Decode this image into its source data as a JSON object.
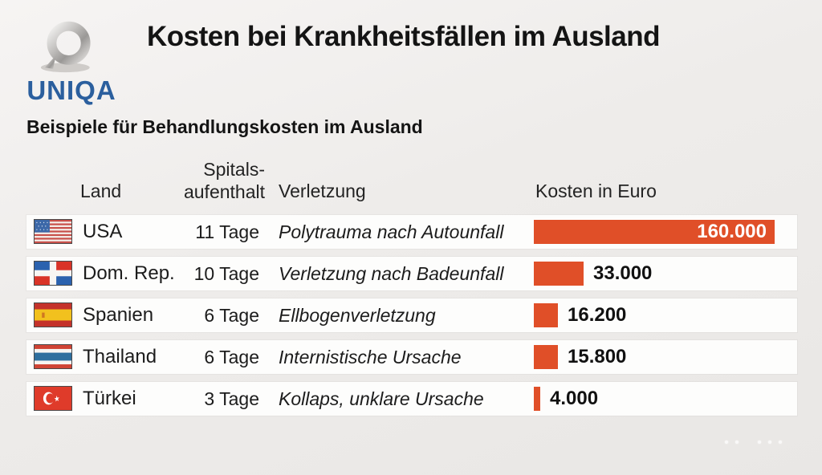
{
  "header": {
    "brand": "UNIQA",
    "title": "Kosten bei Krankheitsfällen im Ausland"
  },
  "subtitle": "Beispiele für Behandlungskosten im Ausland",
  "columns": {
    "country": "Land",
    "stay_line1": "Spitals-",
    "stay_line2": "aufenthalt",
    "injury": "Verletzung",
    "cost": "Kosten in Euro"
  },
  "rows": [
    {
      "country": "USA",
      "flag": "usa",
      "stay": "11 Tage",
      "injury": "Polytrauma nach Autounfall",
      "cost_label": "160.000",
      "cost": 160000
    },
    {
      "country": "Dom. Rep.",
      "flag": "dominican-republic",
      "stay": "10 Tage",
      "injury": "Verletzung nach Badeunfall",
      "cost_label": "33.000",
      "cost": 33000
    },
    {
      "country": "Spanien",
      "flag": "spain",
      "stay": "6 Tage",
      "injury": "Ellbogenverletzung",
      "cost_label": "16.200",
      "cost": 16200
    },
    {
      "country": "Thailand",
      "flag": "thailand",
      "stay": "6 Tage",
      "injury": "Internistische Ursache",
      "cost_label": "15.800",
      "cost": 15800
    },
    {
      "country": "Türkei",
      "flag": "turkey",
      "stay": "3 Tage",
      "injury": "Kollaps, unklare Ursache",
      "cost_label": "4.000",
      "cost": 4000
    }
  ],
  "chart_data": {
    "type": "bar",
    "orientation": "horizontal",
    "title": "Kosten bei Krankheitsfällen im Ausland",
    "subtitle": "Beispiele für Behandlungskosten im Ausland",
    "xlabel": "Kosten in Euro",
    "categories": [
      "USA",
      "Dom. Rep.",
      "Spanien",
      "Thailand",
      "Türkei"
    ],
    "values": [
      160000,
      33000,
      16200,
      15800,
      4000
    ],
    "value_labels": [
      "160.000",
      "33.000",
      "16.200",
      "15.800",
      "4.000"
    ],
    "stay_days": [
      "11 Tage",
      "10 Tage",
      "6 Tage",
      "6 Tage",
      "3 Tage"
    ],
    "injuries": [
      "Polytrauma nach Autounfall",
      "Verletzung nach Badeunfall",
      "Ellbogenverletzung",
      "Internistische Ursache",
      "Kollaps, unklare Ursache"
    ],
    "xlim": [
      0,
      160000
    ],
    "grid": false,
    "legend": false,
    "bar_color": "#e04f28"
  },
  "colors": {
    "bar_orange": "#e04f28",
    "brand_blue": "#2b5f9e",
    "row_background": "#fdfdfc",
    "page_background": "#ebe9e7",
    "title_text": "#141414"
  }
}
